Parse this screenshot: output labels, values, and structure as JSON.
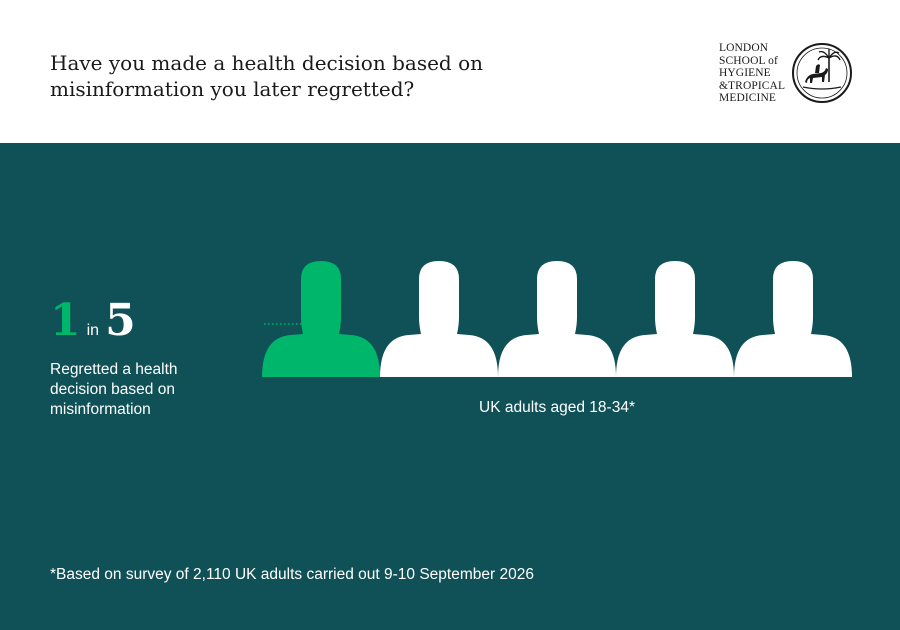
{
  "header": {
    "question": "Have you made a health decision based on misinformation you later regretted?",
    "logo": {
      "lines": [
        "LONDON",
        "SCHOOL of",
        "HYGIENE",
        "&TROPICAL",
        "MEDICINE"
      ]
    }
  },
  "stat": {
    "numerator": "1",
    "in_word": "in",
    "denominator": "5",
    "caption": "Regretted a health decision based on misinformation",
    "group_label": "UK adults aged 18-34*",
    "highlighted_count": 1,
    "total_count": 5
  },
  "footnote": "*Based on survey of 2,110 UK adults carried out 9-10 September 2026",
  "colors": {
    "panel": "#0f5157",
    "highlight": "#00b66b",
    "figure": "#ffffff"
  },
  "icons": [
    "person-icon",
    "leader-line",
    "seal-icon"
  ]
}
